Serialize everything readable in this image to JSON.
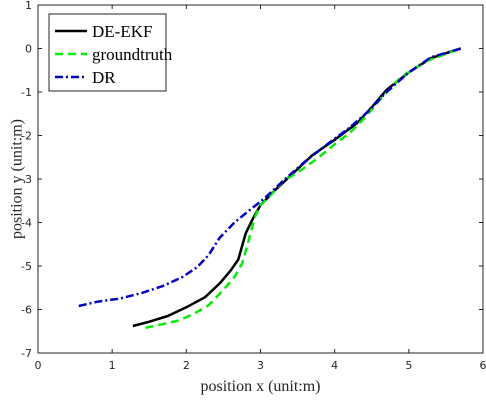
{
  "chart_data": {
    "type": "line",
    "title": "",
    "xlabel": "position x (unit:m)",
    "ylabel": "position y (unit:m)",
    "xlim": [
      0,
      6
    ],
    "ylim": [
      -7,
      1
    ],
    "xticks": [
      0,
      1,
      2,
      3,
      4,
      5,
      6
    ],
    "yticks": [
      -7,
      -6,
      -5,
      -4,
      -3,
      -2,
      -1,
      0,
      1
    ],
    "grid": false,
    "legend": "top-left",
    "series": [
      {
        "name": "DE-EKF",
        "color": "#000000",
        "style": "solid",
        "x": [
          1.28,
          1.5,
          1.75,
          2.0,
          2.25,
          2.45,
          2.6,
          2.7,
          2.75,
          2.8,
          2.9,
          3.0,
          3.2,
          3.45,
          3.7,
          4.0,
          4.3,
          4.5,
          4.7,
          5.0,
          5.3,
          5.7
        ],
        "y": [
          -6.38,
          -6.28,
          -6.15,
          -5.95,
          -5.72,
          -5.4,
          -5.1,
          -4.85,
          -4.55,
          -4.25,
          -3.9,
          -3.6,
          -3.25,
          -2.85,
          -2.45,
          -2.1,
          -1.72,
          -1.35,
          -0.95,
          -0.55,
          -0.22,
          0.0
        ]
      },
      {
        "name": "groundtruth",
        "color": "#00ee00",
        "style": "dashed",
        "x": [
          1.45,
          1.65,
          1.9,
          2.1,
          2.3,
          2.5,
          2.65,
          2.75,
          2.82,
          2.88,
          2.93,
          3.0,
          3.15,
          3.3,
          3.5,
          3.75,
          4.0,
          4.2,
          4.4,
          4.65,
          4.9,
          5.25,
          5.7
        ],
        "y": [
          -6.42,
          -6.35,
          -6.25,
          -6.1,
          -5.9,
          -5.55,
          -5.25,
          -4.95,
          -4.55,
          -4.15,
          -3.85,
          -3.6,
          -3.35,
          -3.05,
          -2.85,
          -2.55,
          -2.2,
          -1.95,
          -1.6,
          -1.1,
          -0.65,
          -0.28,
          0.0
        ]
      },
      {
        "name": "DR",
        "color": "#0000cc",
        "style": "dashdot",
        "x": [
          0.55,
          0.8,
          1.1,
          1.4,
          1.7,
          1.95,
          2.15,
          2.3,
          2.45,
          2.65,
          2.85,
          3.05,
          3.3,
          3.6,
          3.9,
          4.2,
          4.45,
          4.7,
          5.0,
          5.3,
          5.7
        ],
        "y": [
          -5.92,
          -5.82,
          -5.75,
          -5.62,
          -5.45,
          -5.25,
          -5.02,
          -4.75,
          -4.35,
          -4.0,
          -3.72,
          -3.45,
          -3.05,
          -2.6,
          -2.2,
          -1.82,
          -1.45,
          -1.0,
          -0.55,
          -0.2,
          0.0
        ]
      }
    ]
  }
}
